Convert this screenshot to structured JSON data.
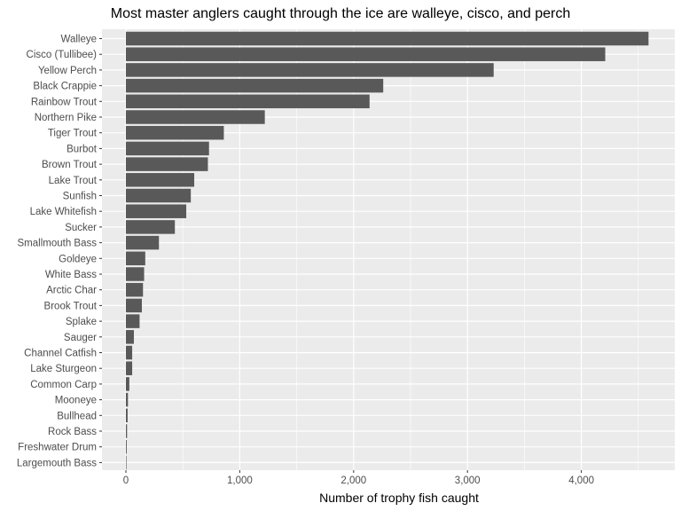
{
  "chart_data": {
    "type": "bar",
    "orientation": "horizontal",
    "title": "Most master anglers caught through the ice are walleye, cisco, and perch",
    "xlabel": "Number of trophy fish caught",
    "ylabel": "",
    "xlim": [
      0,
      4700
    ],
    "xticks": [
      0,
      1000,
      2000,
      3000,
      4000
    ],
    "xtick_labels": [
      "0",
      "1,000",
      "2,000",
      "3,000",
      "4,000"
    ],
    "grid": true,
    "colors": {
      "bar": "#595959",
      "panel": "#ebebeb",
      "grid": "#ffffff"
    },
    "categories": [
      "Walleye",
      "Cisco (Tullibee)",
      "Yellow Perch",
      "Black Crappie",
      "Rainbow Trout",
      "Northern Pike",
      "Tiger Trout",
      "Burbot",
      "Brown Trout",
      "Lake Trout",
      "Sunfish",
      "Lake Whitefish",
      "Sucker",
      "Smallmouth Bass",
      "Goldeye",
      "White Bass",
      "Arctic Char",
      "Brook Trout",
      "Splake",
      "Sauger",
      "Channel Catfish",
      "Lake Sturgeon",
      "Common Carp",
      "Mooneye",
      "Bullhead",
      "Rock Bass",
      "Freshwater Drum",
      "Largemouth Bass"
    ],
    "values": [
      4590,
      4210,
      3230,
      2260,
      2140,
      1220,
      860,
      730,
      720,
      600,
      570,
      530,
      430,
      290,
      170,
      160,
      150,
      140,
      120,
      70,
      55,
      55,
      30,
      18,
      15,
      10,
      7,
      3
    ]
  }
}
